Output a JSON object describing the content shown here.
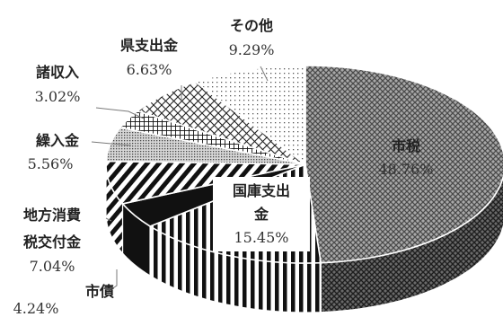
{
  "chart_data": {
    "type": "pie",
    "title": "",
    "slices": [
      {
        "label": "市税",
        "value": 48.76,
        "value_text": "48.76%",
        "pattern": "crosshatch-dense"
      },
      {
        "label": "国庫支出金",
        "label_lines": [
          "国庫支出",
          "金"
        ],
        "value": 15.45,
        "value_text": "15.45%",
        "pattern": "vertical-stripes"
      },
      {
        "label": "市債",
        "value": 4.24,
        "value_text": "4.24%",
        "pattern": "solid-black"
      },
      {
        "label": "地方消費税交付金",
        "label_lines": [
          "地方消費",
          "税交付金"
        ],
        "value": 7.04,
        "value_text": "7.04%",
        "pattern": "diagonal-stripes"
      },
      {
        "label": "繰入金",
        "value": 5.56,
        "value_text": "5.56%",
        "pattern": "fine-dots"
      },
      {
        "label": "諸収入",
        "value": 3.02,
        "value_text": "3.02%",
        "pattern": "grid"
      },
      {
        "label": "県支出金",
        "value": 6.63,
        "value_text": "6.63%",
        "pattern": "large-crosshatch"
      },
      {
        "label": "その他",
        "value": 9.29,
        "value_text": "9.29%",
        "pattern": "sparse-dots"
      }
    ],
    "legend": "none",
    "style": "3d-pie-monochrome-patterns"
  }
}
